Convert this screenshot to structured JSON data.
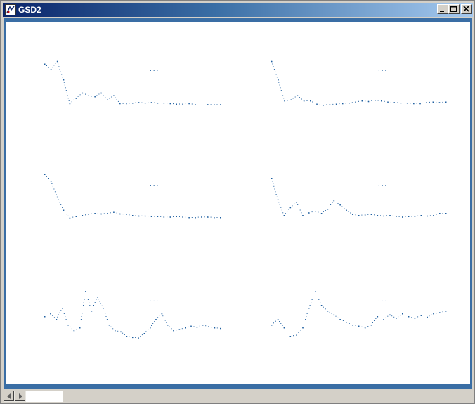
{
  "window": {
    "title": "GSD2",
    "icon": "gsd2-app-icon",
    "controls": [
      "minimize-icon",
      "maximize-icon",
      "close-icon"
    ]
  },
  "colors": {
    "titlebar_start": "#0a246a",
    "titlebar_end": "#a6caf0",
    "frame": "#3a6ea5",
    "plot_dots": "#1f5fa0"
  },
  "plots": [
    {
      "id": "plot-1",
      "marker": "...",
      "values": [
        0.9,
        0.8,
        0.95,
        0.6,
        0.15,
        0.25,
        0.35,
        0.3,
        0.28,
        0.35,
        0.22,
        0.3,
        0.15,
        0.15,
        0.16,
        0.17,
        0.16,
        0.17,
        0.16,
        0.16,
        0.15,
        0.14,
        0.14,
        0.15,
        0.13,
        null,
        0.13,
        0.13,
        0.13
      ]
    },
    {
      "id": "plot-2",
      "marker": "...",
      "values": [
        0.95,
        0.6,
        0.2,
        0.22,
        0.3,
        0.2,
        0.2,
        0.14,
        0.12,
        0.13,
        0.14,
        0.15,
        0.16,
        0.18,
        0.2,
        0.19,
        0.21,
        0.2,
        0.18,
        0.17,
        0.16,
        0.16,
        0.15,
        0.15,
        0.17,
        0.18,
        0.17,
        0.18
      ]
    },
    {
      "id": "plot-3",
      "marker": "...",
      "values": [
        0.98,
        0.85,
        0.55,
        0.3,
        0.15,
        0.18,
        0.2,
        0.22,
        0.24,
        0.23,
        0.24,
        0.26,
        0.23,
        0.22,
        0.2,
        0.19,
        0.19,
        0.18,
        0.18,
        0.17,
        0.17,
        0.18,
        0.17,
        0.16,
        0.16,
        0.17,
        0.17,
        0.16,
        0.16
      ]
    },
    {
      "id": "plot-4",
      "marker": "...",
      "values": [
        0.9,
        0.5,
        0.2,
        0.35,
        0.45,
        0.2,
        0.25,
        0.28,
        0.24,
        0.32,
        0.48,
        0.4,
        0.3,
        0.22,
        0.2,
        0.21,
        0.22,
        0.2,
        0.19,
        0.2,
        0.18,
        0.17,
        0.18,
        0.18,
        0.2,
        0.19,
        0.2,
        0.24,
        0.24
      ]
    },
    {
      "id": "plot-5",
      "marker": "...",
      "values": [
        0.45,
        0.5,
        0.4,
        0.6,
        0.3,
        0.2,
        0.25,
        0.9,
        0.55,
        0.8,
        0.6,
        0.3,
        0.2,
        0.18,
        0.1,
        0.08,
        0.07,
        0.15,
        0.25,
        0.4,
        0.5,
        0.3,
        0.2,
        0.22,
        0.25,
        0.28,
        0.26,
        0.3,
        0.27,
        0.25,
        0.24
      ]
    },
    {
      "id": "plot-6",
      "marker": "...",
      "values": [
        0.3,
        0.4,
        0.25,
        0.1,
        0.12,
        0.25,
        0.6,
        0.9,
        0.65,
        0.55,
        0.48,
        0.4,
        0.35,
        0.3,
        0.28,
        0.25,
        0.3,
        0.45,
        0.4,
        0.48,
        0.42,
        0.5,
        0.45,
        0.42,
        0.47,
        0.44,
        0.5,
        0.52,
        0.55
      ]
    }
  ],
  "scrollbar": {
    "left_icon": "scroll-left-arrow-icon",
    "right_icon": "scroll-right-arrow-icon",
    "position": 0.0
  }
}
